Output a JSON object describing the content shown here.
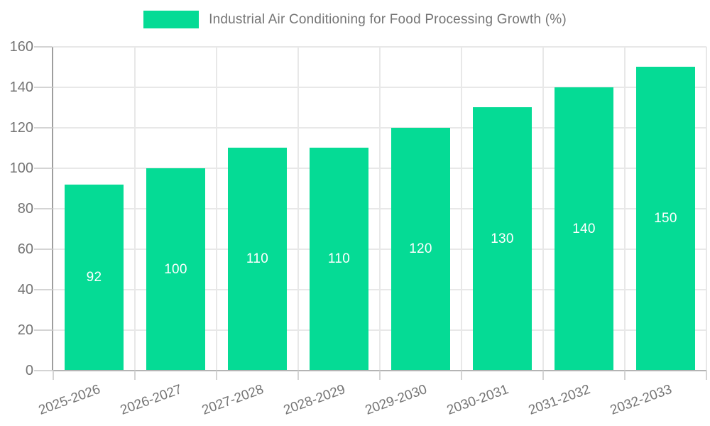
{
  "chart_data": {
    "type": "bar",
    "title": "Industrial Air Conditioning for Food Processing Growth (%)",
    "categories": [
      "2025-2026",
      "2026-2027",
      "2027-2028",
      "2028-2029",
      "2029-2030",
      "2030-2031",
      "2031-2032",
      "2032-2033"
    ],
    "values": [
      92,
      100,
      110,
      110,
      120,
      130,
      140,
      150
    ],
    "xlabel": "",
    "ylabel": "",
    "ylim": [
      0,
      160
    ],
    "yticks": [
      0,
      20,
      40,
      60,
      80,
      100,
      120,
      140,
      160
    ],
    "grid": true,
    "legend_position": "top",
    "bar_value_labels": [
      "92",
      "100",
      "110",
      "110",
      "120",
      "130",
      "140",
      "150"
    ],
    "colors": {
      "bar": "#05db95",
      "axis_text": "#757575",
      "grid": "#e8e8e8",
      "y_axis_line": "#9e9e9e",
      "x_axis_line": "#b4b4b4",
      "tick": "#d4d4d4",
      "value_label": "#ffffff",
      "background": "#ffffff"
    }
  }
}
